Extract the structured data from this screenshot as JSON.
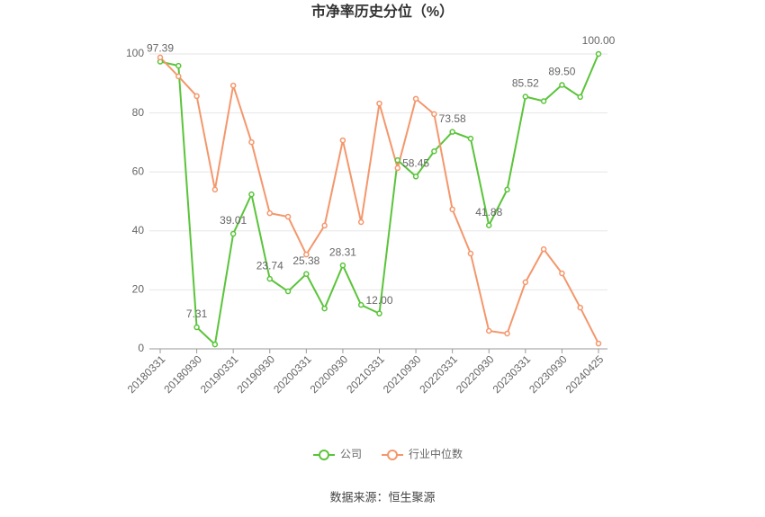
{
  "chart_data": {
    "type": "line",
    "title": "市净率历史分位（%）",
    "source": "数据来源：恒生聚源",
    "categories": [
      "20180331",
      null,
      "20180930",
      null,
      "20190331",
      null,
      "20190930",
      null,
      "20200331",
      null,
      "20200930",
      null,
      "20210331",
      null,
      "20210930",
      null,
      "20220331",
      null,
      "20220930",
      null,
      "20230331",
      null,
      "20230930",
      null,
      "20240425"
    ],
    "series": [
      {
        "name": "公司",
        "color": "#5ac43a",
        "values": [
          97.39,
          96,
          7.31,
          1.5,
          39.01,
          52.4,
          23.74,
          19.5,
          25.38,
          13.7,
          28.31,
          14.9,
          12.0,
          64,
          58.45,
          67,
          73.58,
          71.3,
          41.88,
          54,
          85.52,
          84,
          89.5,
          85.4,
          100.0
        ],
        "value_labels": [
          "97.39",
          null,
          "7.31",
          null,
          "39.01",
          null,
          "23.74",
          null,
          "25.38",
          null,
          "28.31",
          null,
          "12.00",
          null,
          "58.45",
          null,
          "73.58",
          null,
          "41.88",
          null,
          "85.52",
          null,
          "89.50",
          null,
          "100.00"
        ]
      },
      {
        "name": "行业中位数",
        "color": "#f4976c",
        "values": [
          98.8,
          92.4,
          85.7,
          54,
          89.3,
          70.1,
          46,
          44.8,
          32,
          41.8,
          70.7,
          43,
          83.2,
          61.3,
          84.8,
          79.6,
          47.3,
          32.3,
          6.1,
          5.2,
          22.6,
          33.8,
          25.6,
          14,
          1.8
        ]
      }
    ],
    "ylim": [
      0,
      100
    ],
    "yticks": [
      0,
      20,
      40,
      60,
      80,
      100
    ],
    "grid": true,
    "legend": "bottom"
  }
}
